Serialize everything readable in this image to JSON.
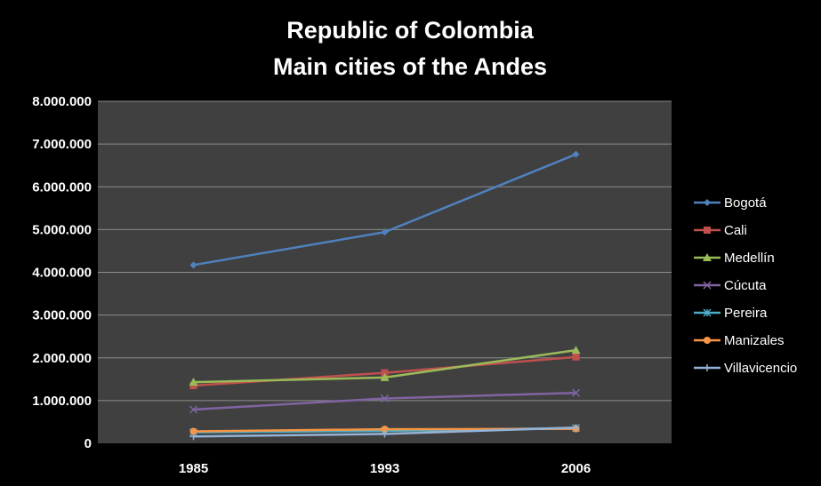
{
  "chart_data": {
    "type": "line",
    "title": [
      "Republic of Colombia",
      "Main cities of the Andes"
    ],
    "xlabel": "",
    "ylabel": "",
    "categories": [
      "1985",
      "1993",
      "2006"
    ],
    "ylim": [
      0,
      8000000
    ],
    "yticks": [
      0,
      1000000,
      2000000,
      3000000,
      4000000,
      5000000,
      6000000,
      7000000,
      8000000
    ],
    "ytick_labels": [
      "0",
      "1.000.000",
      "2.000.000",
      "3.000.000",
      "4.000.000",
      "5.000.000",
      "6.000.000",
      "7.000.000",
      "8.000.000"
    ],
    "grid": true,
    "plot_background": "#404040",
    "legend_position": "right",
    "series": [
      {
        "name": "Bogotá",
        "color": "#4f81bd",
        "marker": "diamond",
        "values": [
          4170000,
          4940000,
          6760000
        ]
      },
      {
        "name": "Cali",
        "color": "#c0504d",
        "marker": "square",
        "values": [
          1350000,
          1650000,
          2020000
        ]
      },
      {
        "name": "Medellín",
        "color": "#9bbb59",
        "marker": "triangle",
        "values": [
          1430000,
          1540000,
          2180000
        ]
      },
      {
        "name": "Cúcuta",
        "color": "#8064a2",
        "marker": "x",
        "values": [
          790000,
          1050000,
          1180000
        ]
      },
      {
        "name": "Pereira",
        "color": "#4bacc6",
        "marker": "star",
        "values": [
          260000,
          290000,
          360000
        ]
      },
      {
        "name": "Manizales",
        "color": "#f79646",
        "marker": "circle",
        "values": [
          280000,
          330000,
          340000
        ]
      },
      {
        "name": "Villavicencio",
        "color": "#95b3d7",
        "marker": "plus",
        "values": [
          160000,
          220000,
          370000
        ]
      }
    ]
  }
}
